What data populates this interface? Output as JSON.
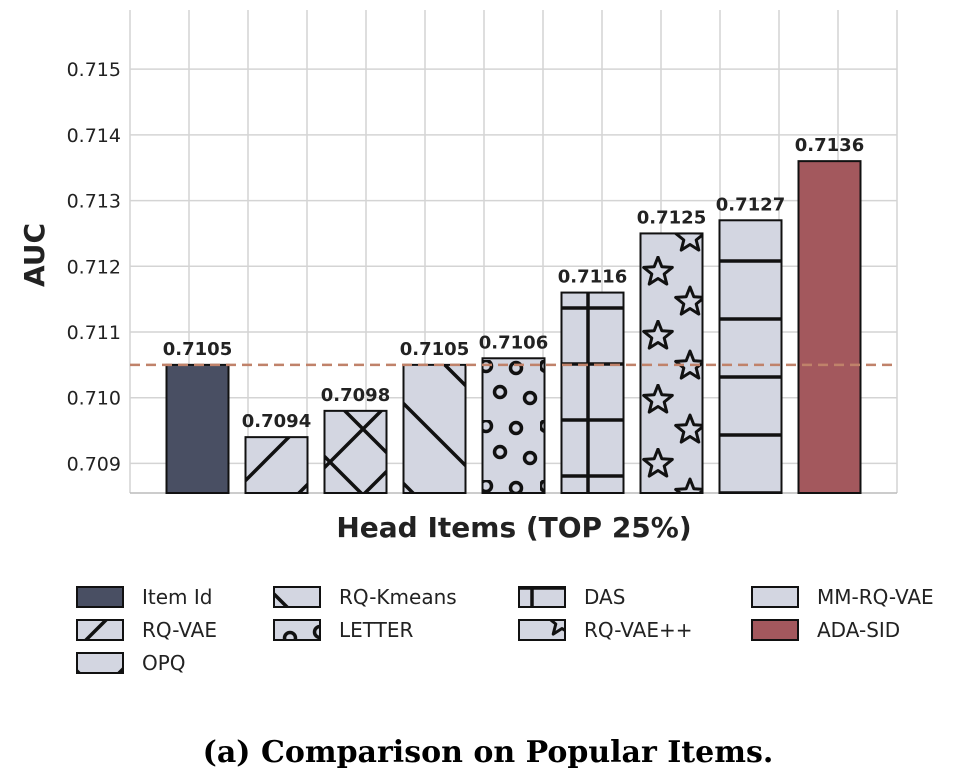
{
  "chart_data": {
    "type": "bar",
    "categories": [
      "Item Id",
      "RQ-VAE",
      "OPQ",
      "RQ-Kmeans",
      "LETTER",
      "DAS",
      "RQ-VAE++",
      "MM-RQ-VAE",
      "ADA-SID"
    ],
    "values": [
      0.7105,
      0.7094,
      0.7098,
      0.7105,
      0.7106,
      0.7116,
      0.7125,
      0.7127,
      0.7136
    ],
    "value_labels": [
      "0.7105",
      "0.7094",
      "0.7098",
      "0.7105",
      "0.7106",
      "0.7116",
      "0.7125",
      "0.7127",
      "0.7136"
    ],
    "bar_colors": [
      "#494f63",
      "#d3d6e1",
      "#d3d6e1",
      "#d3d6e1",
      "#d3d6e1",
      "#d3d6e1",
      "#d3d6e1",
      "#d3d6e1",
      "#a3585d"
    ],
    "hatches": [
      "none",
      "forward-slash",
      "cross-diagonal",
      "back-slash",
      "circles",
      "plus",
      "stars",
      "horizontal",
      "none"
    ],
    "legend_order": [
      "Item Id",
      "RQ-Kmeans",
      "DAS",
      "MM-RQ-VAE",
      "RQ-VAE",
      "LETTER",
      "RQ-VAE++",
      "ADA-SID",
      "OPQ"
    ],
    "legend_placement": "bottom",
    "reference_line": {
      "value": 0.7105,
      "color": "#c0826a",
      "style": "dashed"
    },
    "ylabel": "AUC",
    "xlabel": "Head Items (TOP 25%)",
    "ylim": [
      0.70855,
      0.7159
    ],
    "yticks": [
      "0.709",
      "0.710",
      "0.711",
      "0.712",
      "0.713",
      "0.714",
      "0.715"
    ],
    "grid": true,
    "caption": "(a) Comparison on Popular Items."
  }
}
